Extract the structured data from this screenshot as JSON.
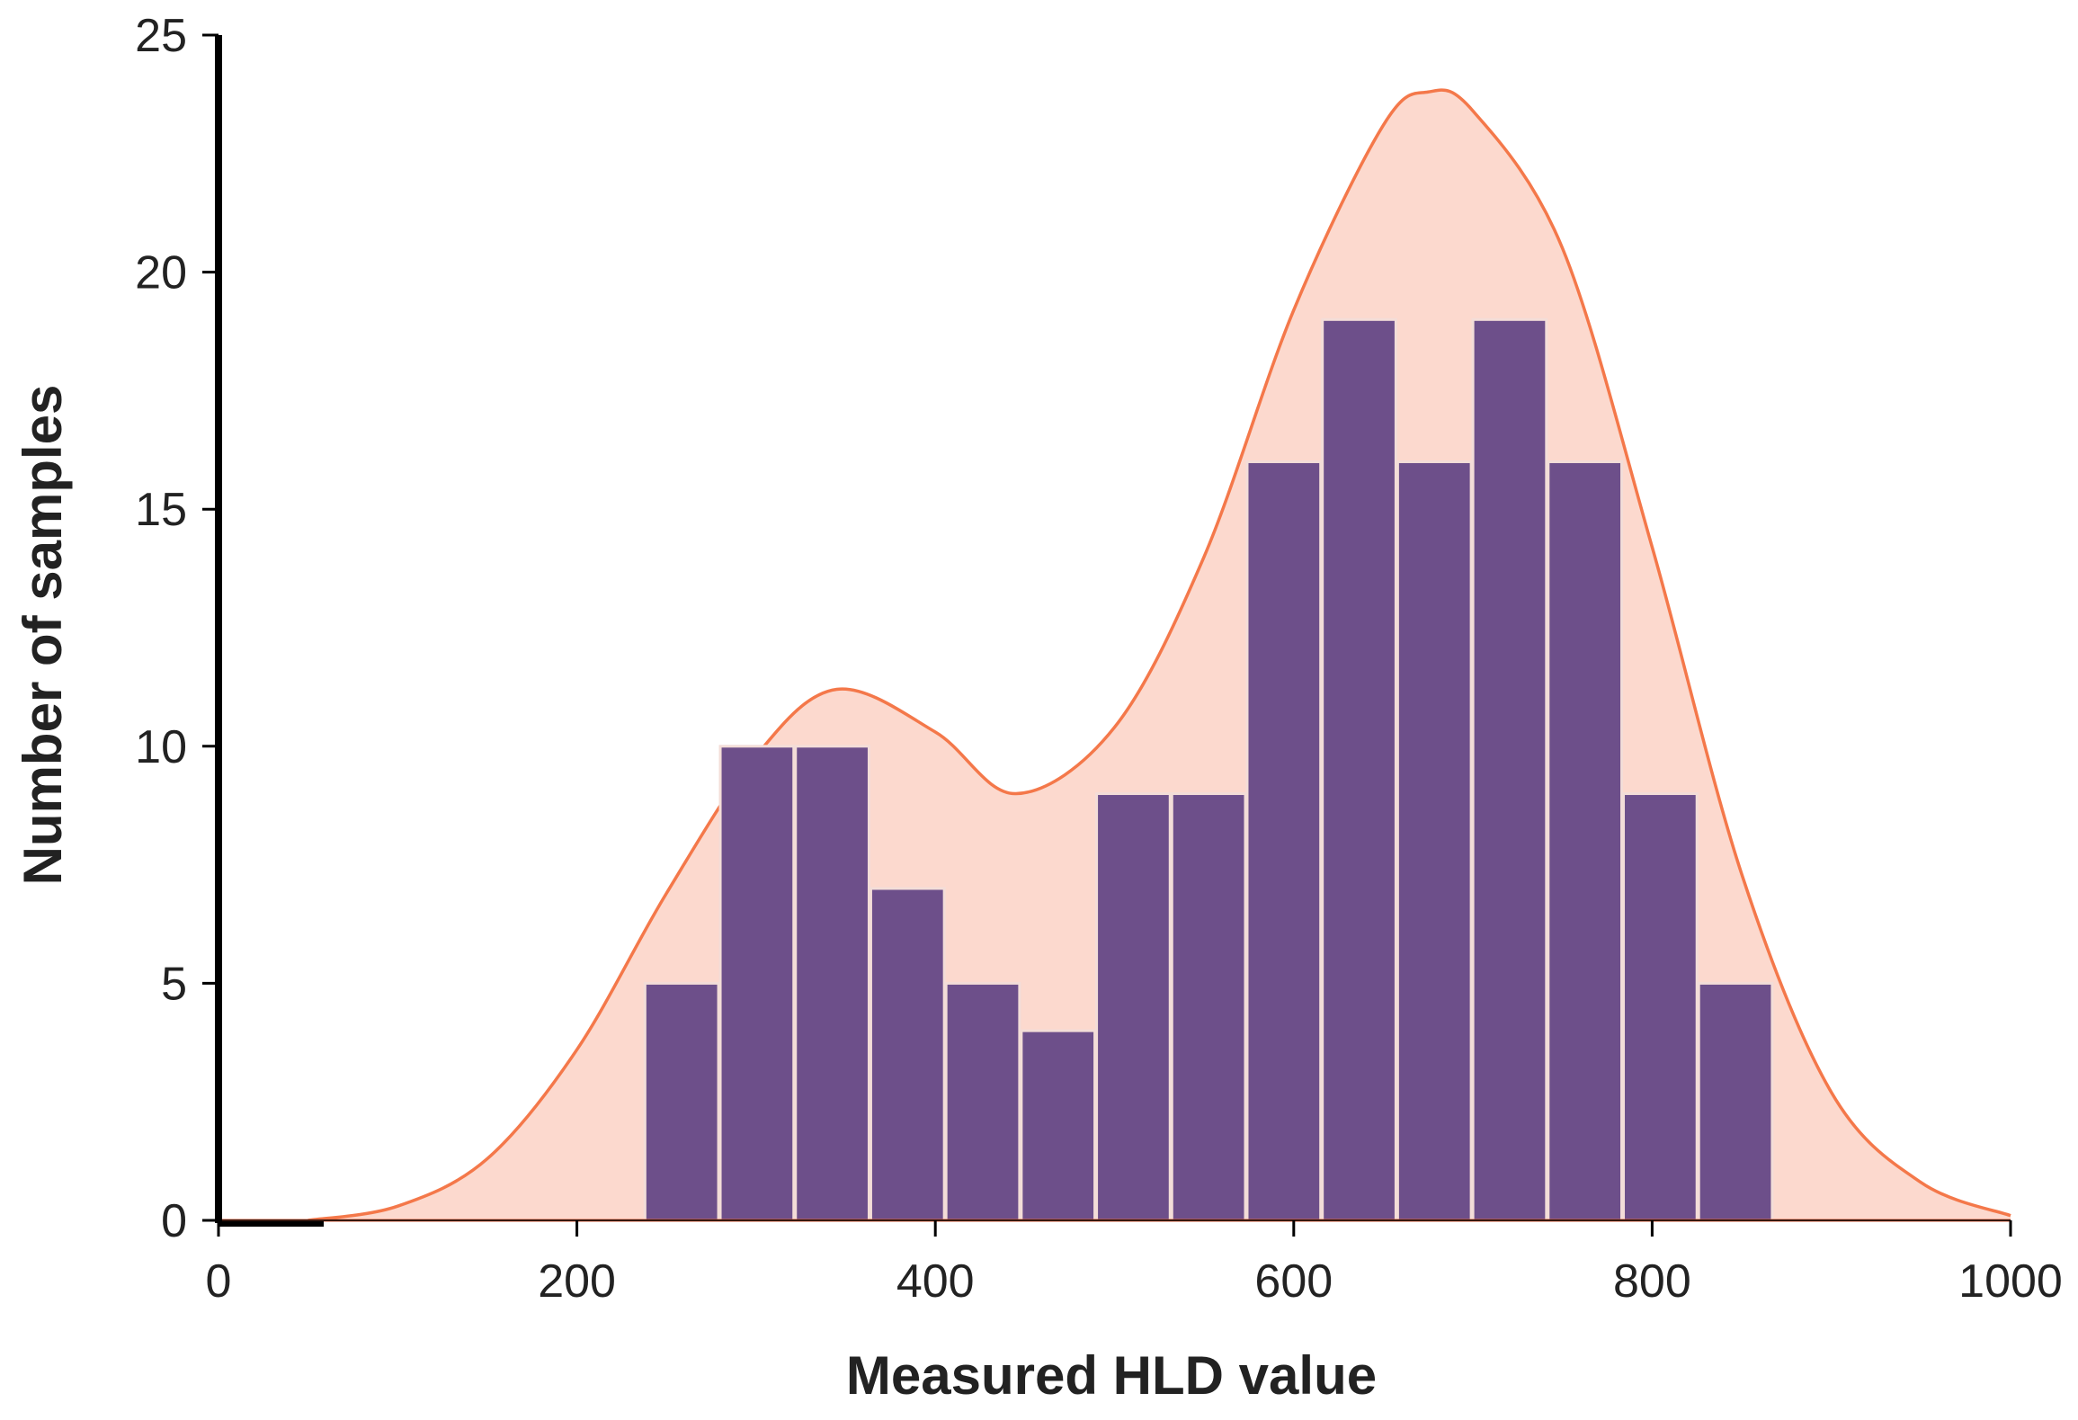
{
  "chart_data": {
    "type": "bar",
    "subtype": "histogram-with-density",
    "xlabel": "Measured HLD value",
    "ylabel": "Number of samples",
    "xlim": [
      0,
      1000
    ],
    "ylim": [
      0,
      25
    ],
    "xticks": [
      0,
      200,
      400,
      600,
      800,
      1000
    ],
    "yticks": [
      0,
      5,
      10,
      15,
      20,
      25
    ],
    "grid": false,
    "bins": [
      {
        "x0": 238,
        "x1": 279,
        "count": 5
      },
      {
        "x0": 280,
        "x1": 321,
        "count": 10
      },
      {
        "x0": 322,
        "x1": 363,
        "count": 10
      },
      {
        "x0": 364,
        "x1": 405,
        "count": 7
      },
      {
        "x0": 406,
        "x1": 447,
        "count": 5
      },
      {
        "x0": 448,
        "x1": 489,
        "count": 4
      },
      {
        "x0": 490,
        "x1": 531,
        "count": 9
      },
      {
        "x0": 532,
        "x1": 573,
        "count": 9
      },
      {
        "x0": 574,
        "x1": 615,
        "count": 16
      },
      {
        "x0": 616,
        "x1": 657,
        "count": 19
      },
      {
        "x0": 658,
        "x1": 699,
        "count": 16
      },
      {
        "x0": 700,
        "x1": 741,
        "count": 19
      },
      {
        "x0": 742,
        "x1": 783,
        "count": 16
      },
      {
        "x0": 784,
        "x1": 825,
        "count": 9
      },
      {
        "x0": 826,
        "x1": 867,
        "count": 5
      }
    ],
    "overlay_bar": {
      "x0": 282,
      "x1": 320,
      "count": 10,
      "color": "#3a3a9a"
    },
    "density_curve": {
      "x": [
        50,
        100,
        150,
        200,
        250,
        300,
        345,
        400,
        445,
        500,
        550,
        600,
        650,
        675,
        700,
        750,
        800,
        850,
        900,
        950,
        1000
      ],
      "y": [
        0.0,
        0.3,
        1.3,
        3.6,
        6.9,
        9.8,
        11.2,
        10.3,
        9.0,
        10.4,
        14.0,
        19.2,
        23.1,
        23.8,
        23.4,
        20.5,
        14.2,
        7.3,
        2.7,
        0.8,
        0.1
      ]
    },
    "colors": {
      "bar_fill": "#6d4f8a",
      "bar_edge": "#f3ddd8",
      "curve_line": "#f4784a",
      "curve_fill": "#fcd9ce",
      "axis": "#000000",
      "baseline_line": "#e0623c"
    }
  }
}
